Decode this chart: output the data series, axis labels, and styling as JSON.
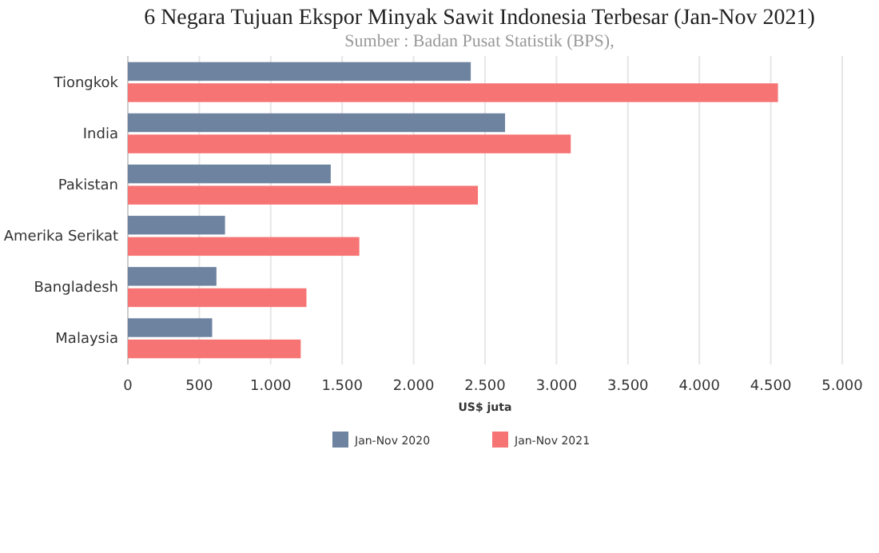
{
  "chart_data": {
    "type": "bar",
    "orientation": "horizontal",
    "title": "6 Negara Tujuan Ekspor Minyak Sawit Indonesia Terbesar (Jan-Nov 2021)",
    "subtitle": "Sumber : Badan Pusat Statistik (BPS),",
    "xlabel": "US$ juta",
    "categories": [
      "Tiongkok",
      "India",
      "Pakistan",
      "Amerika Serikat",
      "Bangladesh",
      "Malaysia"
    ],
    "series": [
      {
        "name": "Jan-Nov 2020",
        "color": "#6e83a0",
        "values": [
          2400,
          2640,
          1420,
          680,
          620,
          590
        ]
      },
      {
        "name": "Jan-Nov 2021",
        "color": "#f77474",
        "values": [
          4550,
          3100,
          2450,
          1620,
          1250,
          1210
        ]
      }
    ],
    "xlim": [
      0,
      5000
    ],
    "xticks": [
      0,
      {
        "value": 500,
        "label": "500"
      },
      {
        "value": 1000,
        "label": "1.000"
      },
      {
        "value": 1500,
        "label": "1.500"
      },
      {
        "value": 2000,
        "label": "2.000"
      },
      {
        "value": 2500,
        "label": "2.500"
      },
      {
        "value": 3000,
        "label": "3.000"
      },
      {
        "value": 3500,
        "label": "3.500"
      },
      {
        "value": 4000,
        "label": "4.000"
      },
      {
        "value": 4500,
        "label": "4.500"
      },
      {
        "value": 5000,
        "label": "5.000"
      }
    ],
    "grid": "x",
    "legend": "bottom"
  }
}
